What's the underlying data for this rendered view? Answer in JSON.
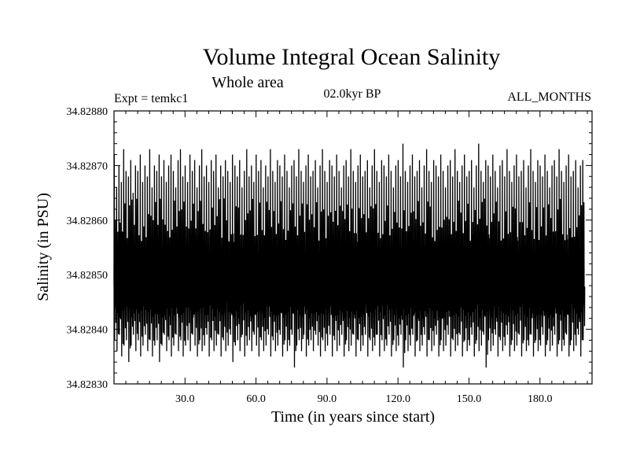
{
  "chart_data": {
    "type": "line",
    "title": "Volume Integral Ocean Salinity",
    "subtitle": "Whole area",
    "annotations": {
      "experiment": "Expt = temkc1",
      "period": "02.0kyr BP",
      "months": "ALL_MONTHS"
    },
    "xlabel": "Time (in years since start)",
    "ylabel": "Salinity (in PSU)",
    "xlim": [
      0,
      202
    ],
    "ylim": [
      34.8283,
      34.8288
    ],
    "x_ticks": [
      30,
      60,
      90,
      120,
      150,
      180
    ],
    "x_tick_labels": [
      "30.0",
      "60.0",
      "90.0",
      "120.0",
      "150.0",
      "180.0"
    ],
    "y_ticks": [
      34.8283,
      34.8284,
      34.8285,
      34.8286,
      34.8287,
      34.8288
    ],
    "y_tick_labels": [
      "34.82830",
      "34.82840",
      "34.82850",
      "34.82860",
      "34.82870",
      "34.82880"
    ],
    "series": [
      {
        "name": "Salinity",
        "description": "monthly values with strong annual cycle, oscillating ~34.82836 to ~34.82872 around mean ~34.82848",
        "x_start": 0,
        "x_step": 0.0833333,
        "annual_peaks": [
          34.82872,
          34.82866,
          34.8287,
          34.82867,
          34.82873,
          34.82869,
          34.82868,
          34.82871,
          34.82865,
          34.8287,
          34.82869,
          34.82872,
          34.82867,
          34.8287,
          34.82868,
          34.82873,
          34.82866,
          34.8287,
          34.82869,
          34.82872,
          34.82868,
          34.82871,
          34.82867,
          34.8287,
          34.82872,
          34.82869,
          34.82866,
          34.82871,
          34.82873,
          34.82868,
          34.8287,
          34.82867,
          34.82872,
          34.82869,
          34.82871,
          34.82866,
          34.8287,
          34.82873,
          34.82868,
          34.8287,
          34.82867,
          34.82871,
          34.82869,
          34.82872,
          34.82866,
          34.8287,
          34.82868,
          34.82871,
          34.82869,
          34.82867,
          34.82872,
          34.8287,
          34.82868,
          34.82871,
          34.82866,
          34.82869,
          34.82873,
          34.82868,
          34.8287,
          34.82867,
          34.82872,
          34.82869,
          34.82871,
          34.82866,
          34.8287,
          34.82868,
          34.82873,
          34.82869,
          34.82867,
          34.82871,
          34.8287,
          34.82868,
          34.82872,
          34.82869,
          34.82866,
          34.8287,
          34.82871,
          34.82868,
          34.82873,
          34.82869,
          34.82867,
          34.8287,
          34.82872,
          34.82868,
          34.82869,
          34.82871,
          34.82866,
          34.8287,
          34.82873,
          34.82869,
          34.82867,
          34.82871,
          34.8287,
          34.82868,
          34.82872,
          34.82869,
          34.82866,
          34.8287,
          34.82871,
          34.82868,
          34.82873,
          34.82869,
          34.82867,
          34.8287,
          34.82872,
          34.82868,
          34.82869,
          34.82871,
          34.82866,
          34.8287,
          34.82873,
          34.82869,
          34.82867,
          34.82871,
          34.8287,
          34.82868,
          34.82872,
          34.82869,
          34.82866,
          34.8287,
          34.82871,
          34.82868,
          34.82874,
          34.82869,
          34.82867,
          34.8287,
          34.82872,
          34.82868,
          34.82869,
          34.82871,
          34.82866,
          34.8287,
          34.82873,
          34.82869,
          34.82867,
          34.82871,
          34.8287,
          34.82868,
          34.82872,
          34.82869,
          34.82866,
          34.8287,
          34.82871,
          34.82868,
          34.82873,
          34.82869,
          34.82867,
          34.8287,
          34.82872,
          34.82868,
          34.82869,
          34.82871,
          34.82866,
          34.8287,
          34.82874,
          34.82869,
          34.82867,
          34.82871,
          34.8287,
          34.82868,
          34.82872,
          34.82869,
          34.82866,
          34.8287,
          34.82871,
          34.82868,
          34.82873,
          34.82869,
          34.82867,
          34.8287,
          34.82872,
          34.82868,
          34.82869,
          34.82871,
          34.82866,
          34.8287,
          34.82873,
          34.82869,
          34.82867,
          34.82871,
          34.8287,
          34.82868,
          34.82872,
          34.82869,
          34.82866,
          34.8287,
          34.82871,
          34.82868,
          34.82873,
          34.82869,
          34.82867,
          34.8287,
          34.82872,
          34.82868,
          34.82869,
          34.82871,
          34.82866,
          34.8287,
          34.82871
        ],
        "annual_troughs": [
          34.82838,
          34.82836,
          34.82839,
          34.82835,
          34.82837,
          34.82838,
          34.82834,
          34.82837,
          34.82839,
          34.82836,
          34.82838,
          34.82835,
          34.82837,
          34.82839,
          34.82836,
          34.82838,
          34.82835,
          34.82837,
          34.82838,
          34.82834,
          34.82837,
          34.82839,
          34.82836,
          34.82838,
          34.82835,
          34.82837,
          34.82839,
          34.82836,
          34.82838,
          34.82835,
          34.82837,
          34.82838,
          34.82836,
          34.82839,
          34.82837,
          34.82835,
          34.82838,
          34.82836,
          34.82837,
          34.82839,
          34.82835,
          34.82838,
          34.82836,
          34.82837,
          34.82839,
          34.82835,
          34.82838,
          34.82836,
          34.82837,
          34.82839,
          34.82834,
          34.82837,
          34.82838,
          34.82836,
          34.82839,
          34.82835,
          34.82837,
          34.82838,
          34.82836,
          34.82839,
          34.82837,
          34.82835,
          34.82838,
          34.82836,
          34.82837,
          34.82839,
          34.82835,
          34.82838,
          34.82836,
          34.82837,
          34.82839,
          34.82835,
          34.82838,
          34.82836,
          34.82837,
          34.82839,
          34.82833,
          34.82837,
          34.82838,
          34.82836,
          34.82839,
          34.82835,
          34.82837,
          34.82838,
          34.82836,
          34.82839,
          34.82837,
          34.82835,
          34.82838,
          34.82836,
          34.82837,
          34.82839,
          34.82835,
          34.82838,
          34.82836,
          34.82837,
          34.82839,
          34.82835,
          34.82838,
          34.82836,
          34.82837,
          34.82839,
          34.82835,
          34.82838,
          34.82836,
          34.82837,
          34.82839,
          34.82835,
          34.82838,
          34.82836,
          34.82837,
          34.82839,
          34.82835,
          34.82838,
          34.82836,
          34.82837,
          34.82839,
          34.82835,
          34.82838,
          34.82836,
          34.82837,
          34.82839,
          34.82833,
          34.82838,
          34.82836,
          34.82837,
          34.82839,
          34.82835,
          34.82838,
          34.82836,
          34.82837,
          34.82839,
          34.82835,
          34.82838,
          34.82836,
          34.82837,
          34.82839,
          34.82835,
          34.82838,
          34.82836,
          34.82837,
          34.82839,
          34.82835,
          34.82838,
          34.82836,
          34.82837,
          34.82839,
          34.82835,
          34.82838,
          34.82836,
          34.82837,
          34.82839,
          34.82835,
          34.82838,
          34.82836,
          34.82837,
          34.82839,
          34.82833,
          34.82838,
          34.82836,
          34.82837,
          34.82839,
          34.82835,
          34.82838,
          34.82836,
          34.82837,
          34.82839,
          34.82835,
          34.82838,
          34.82836,
          34.82837,
          34.82839,
          34.82835,
          34.82838,
          34.82836,
          34.82837,
          34.82839,
          34.82835,
          34.82838,
          34.82836,
          34.82837,
          34.82839,
          34.82835,
          34.82838,
          34.82836,
          34.82837,
          34.82839,
          34.82835,
          34.82838,
          34.82836,
          34.82837,
          34.82839,
          34.82835,
          34.82838,
          34.82836,
          34.82837,
          34.82839,
          34.82835,
          34.82838,
          34.82836
        ]
      }
    ]
  }
}
